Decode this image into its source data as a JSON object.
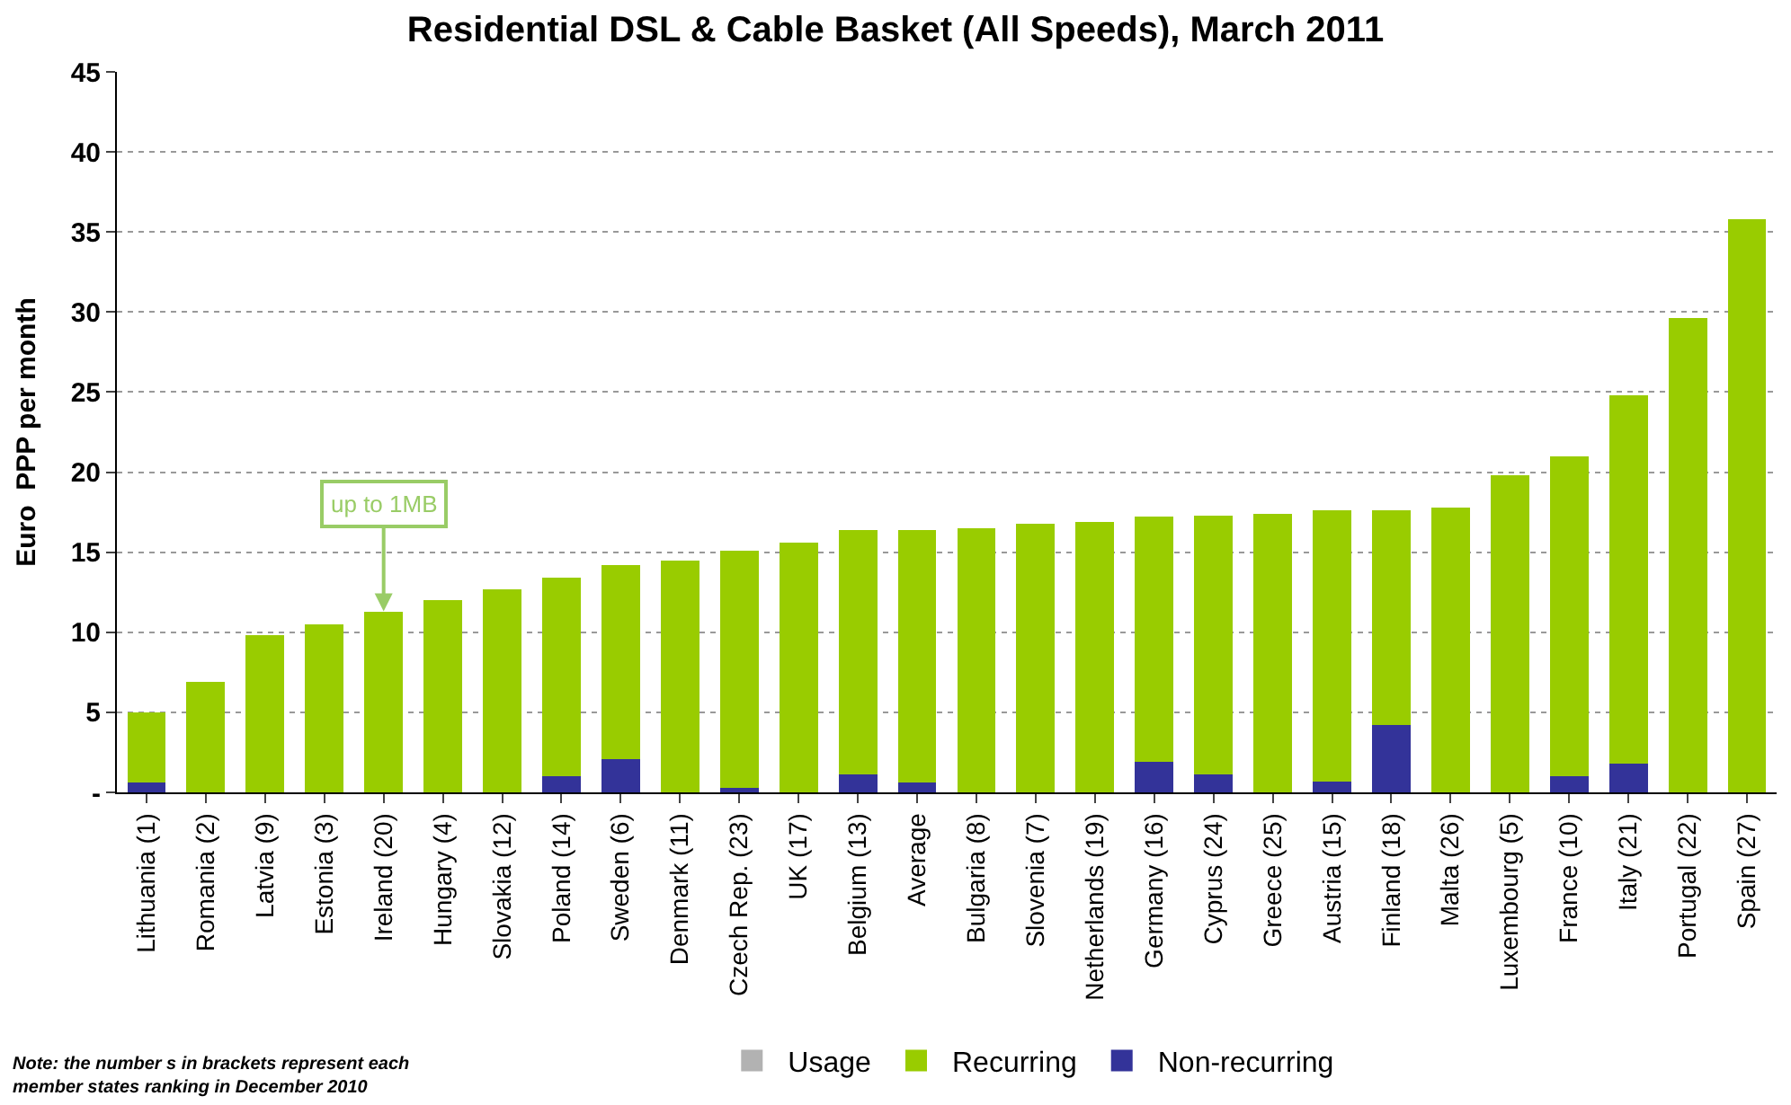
{
  "chart_data": {
    "type": "bar",
    "title": "Residential DSL & Cable Basket (All Speeds), March 2011",
    "ylabel": "Euro  PPP per month",
    "categories": [
      "Lithuania (1)",
      "Romania (2)",
      "Latvia (9)",
      "Estonia (3)",
      "Ireland (20)",
      "Hungary (4)",
      "Slovakia (12)",
      "Poland (14)",
      "Sweden (6)",
      "Denmark (11)",
      "Czech Rep. (23)",
      "UK (17)",
      "Belgium (13)",
      "Average",
      "Bulgaria (8)",
      "Slovenia (7)",
      "Netherlands (19)",
      "Germany (16)",
      "Cyprus (24)",
      "Greece (25)",
      "Austria (15)",
      "Finland (18)",
      "Malta (26)",
      "Luxembourg (5)",
      "France (10)",
      "Italy (21)",
      "Portugal (22)",
      "Spain (27)"
    ],
    "stacked": true,
    "series": [
      {
        "name": "Non-recurring",
        "color": "#333399",
        "values": [
          0.6,
          0,
          0,
          0,
          0,
          0,
          0,
          1.0,
          2.1,
          0,
          0.3,
          0,
          1.1,
          0.6,
          0,
          0,
          0,
          1.9,
          1.1,
          0,
          0.7,
          4.2,
          0,
          0,
          1.0,
          1.8,
          0,
          0
        ]
      },
      {
        "name": "Recurring",
        "color": "#99cc00",
        "values": [
          4.4,
          6.9,
          9.8,
          10.5,
          11.3,
          12.0,
          12.7,
          12.4,
          12.1,
          14.5,
          14.8,
          15.6,
          15.3,
          15.8,
          16.5,
          16.8,
          16.9,
          15.3,
          16.2,
          17.4,
          16.9,
          13.4,
          17.8,
          19.8,
          20.0,
          23.0,
          29.6,
          35.8
        ]
      },
      {
        "name": "Usage",
        "color": "#b2b2b2",
        "values": [
          null,
          null,
          null,
          null,
          null,
          null,
          null,
          null,
          null,
          null,
          null,
          null,
          null,
          null,
          null,
          null,
          null,
          null,
          null,
          null,
          null,
          null,
          null,
          null,
          null,
          null,
          null,
          null
        ]
      }
    ],
    "ylim": [
      0,
      45
    ],
    "yticks": [
      {
        "value": 0,
        "label": "-"
      },
      5,
      10,
      15,
      20,
      25,
      30,
      35,
      40,
      45
    ],
    "grid": "y",
    "legend": "bottom",
    "annotations": [
      {
        "text": "up to 1MB",
        "x": "Ireland (20)",
        "y": 11.3
      },
      "Note: the number s in brackets represent each member states ranking in December 2010"
    ]
  }
}
